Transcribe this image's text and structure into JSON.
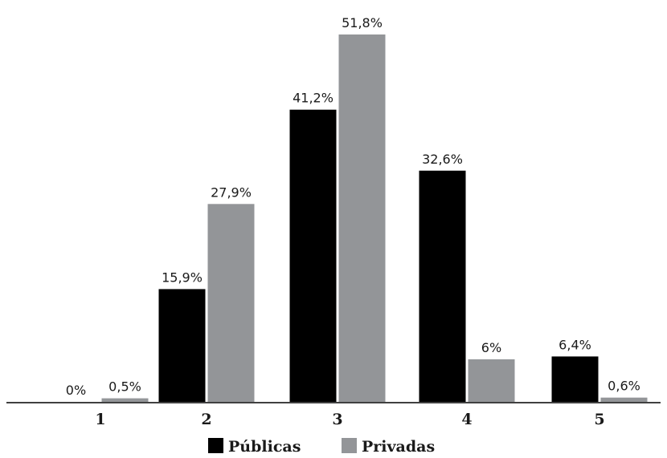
{
  "chart_data": {
    "type": "bar",
    "categories": [
      "1",
      "2",
      "3",
      "4",
      "5"
    ],
    "series": [
      {
        "name": "Públicas",
        "color": "#000000",
        "values": [
          0,
          15.9,
          41.2,
          32.6,
          6.4
        ],
        "labels": [
          "0%",
          "15,9%",
          "41,2%",
          "32,6%",
          "6,4%"
        ]
      },
      {
        "name": "Privadas",
        "color": "#939598",
        "values": [
          0.5,
          27.9,
          51.8,
          6,
          0.6
        ],
        "labels": [
          "0,5%",
          "27,9%",
          "51,8%",
          "6%",
          "0,6%"
        ]
      }
    ],
    "title": "",
    "xlabel": "",
    "ylabel": "",
    "ylim": [
      0,
      51.8
    ],
    "grid": false,
    "legend_position": "bottom-center"
  }
}
